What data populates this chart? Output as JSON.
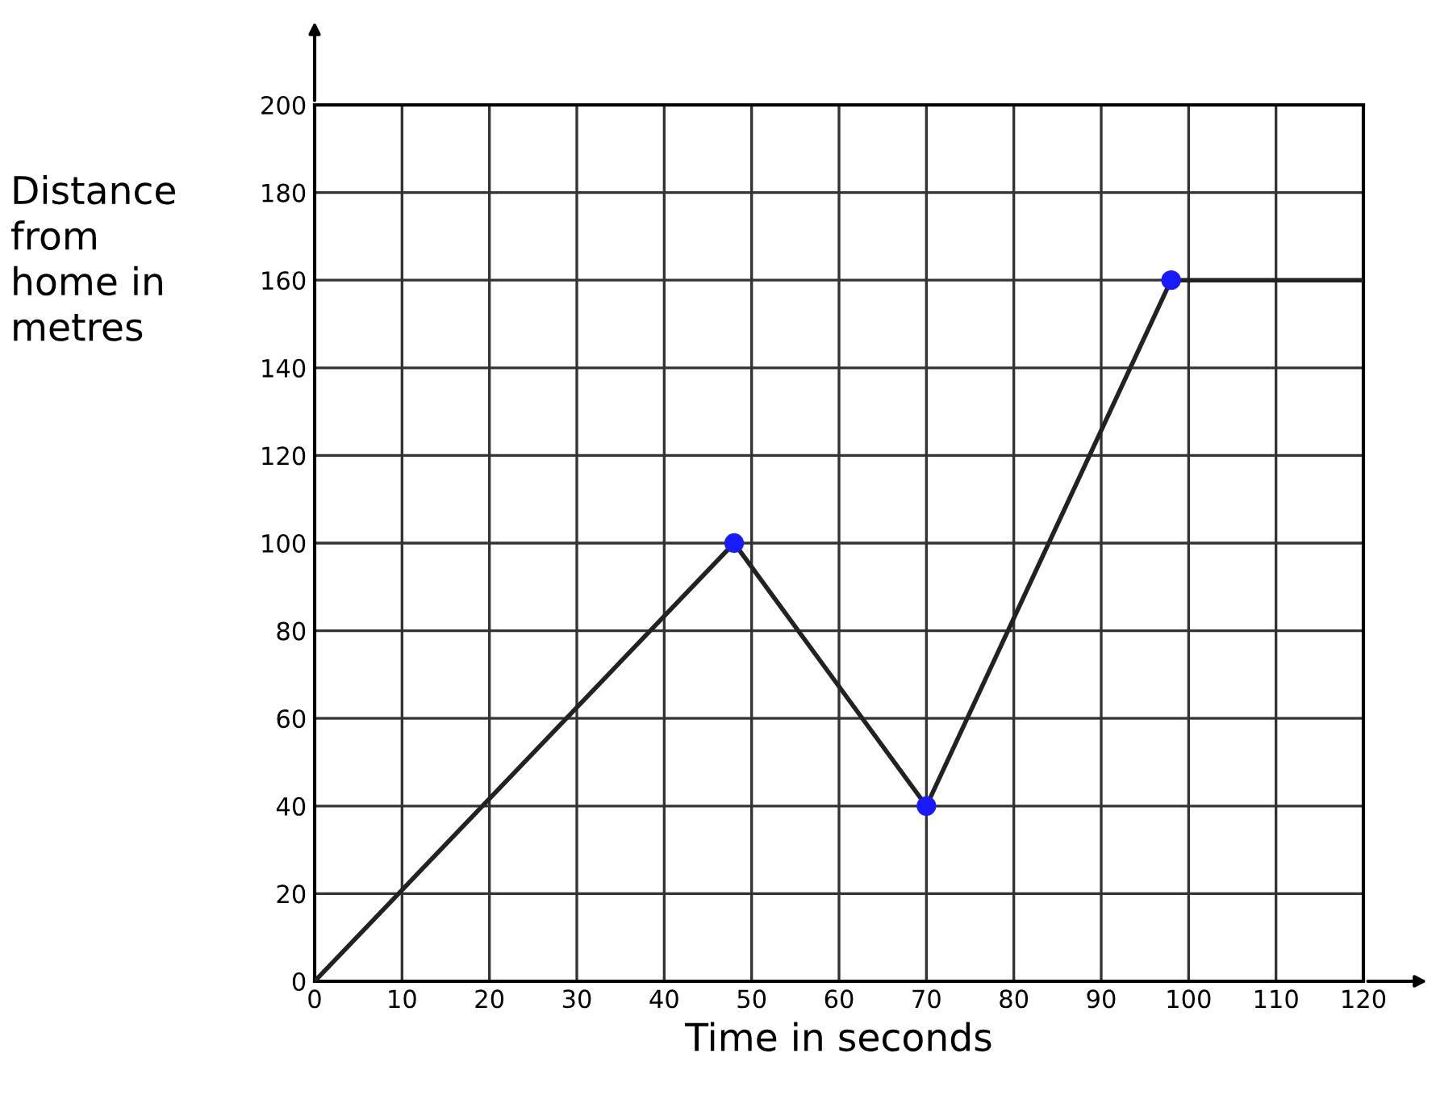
{
  "chart_data": {
    "type": "line",
    "xlabel": "Time in seconds",
    "ylabel": "Distance\nfrom\nhome in\nmetres",
    "series": [
      {
        "color": "#222222",
        "x": [
          0,
          48,
          70,
          98,
          120
        ],
        "values": [
          0,
          100,
          40,
          160,
          160
        ],
        "marker": "none"
      },
      {
        "type": "scatter",
        "color": "#1a1aff",
        "x": [
          48,
          70,
          98
        ],
        "values": [
          100,
          40,
          160
        ],
        "marker": "circle"
      }
    ],
    "xlim": [
      0,
      120
    ],
    "ylim": [
      0,
      200
    ],
    "xticks": [
      0,
      10,
      20,
      30,
      40,
      50,
      60,
      70,
      80,
      90,
      100,
      110,
      120
    ],
    "yticks": [
      0,
      20,
      40,
      60,
      80,
      100,
      120,
      140,
      160,
      180,
      200
    ],
    "grid": true
  }
}
